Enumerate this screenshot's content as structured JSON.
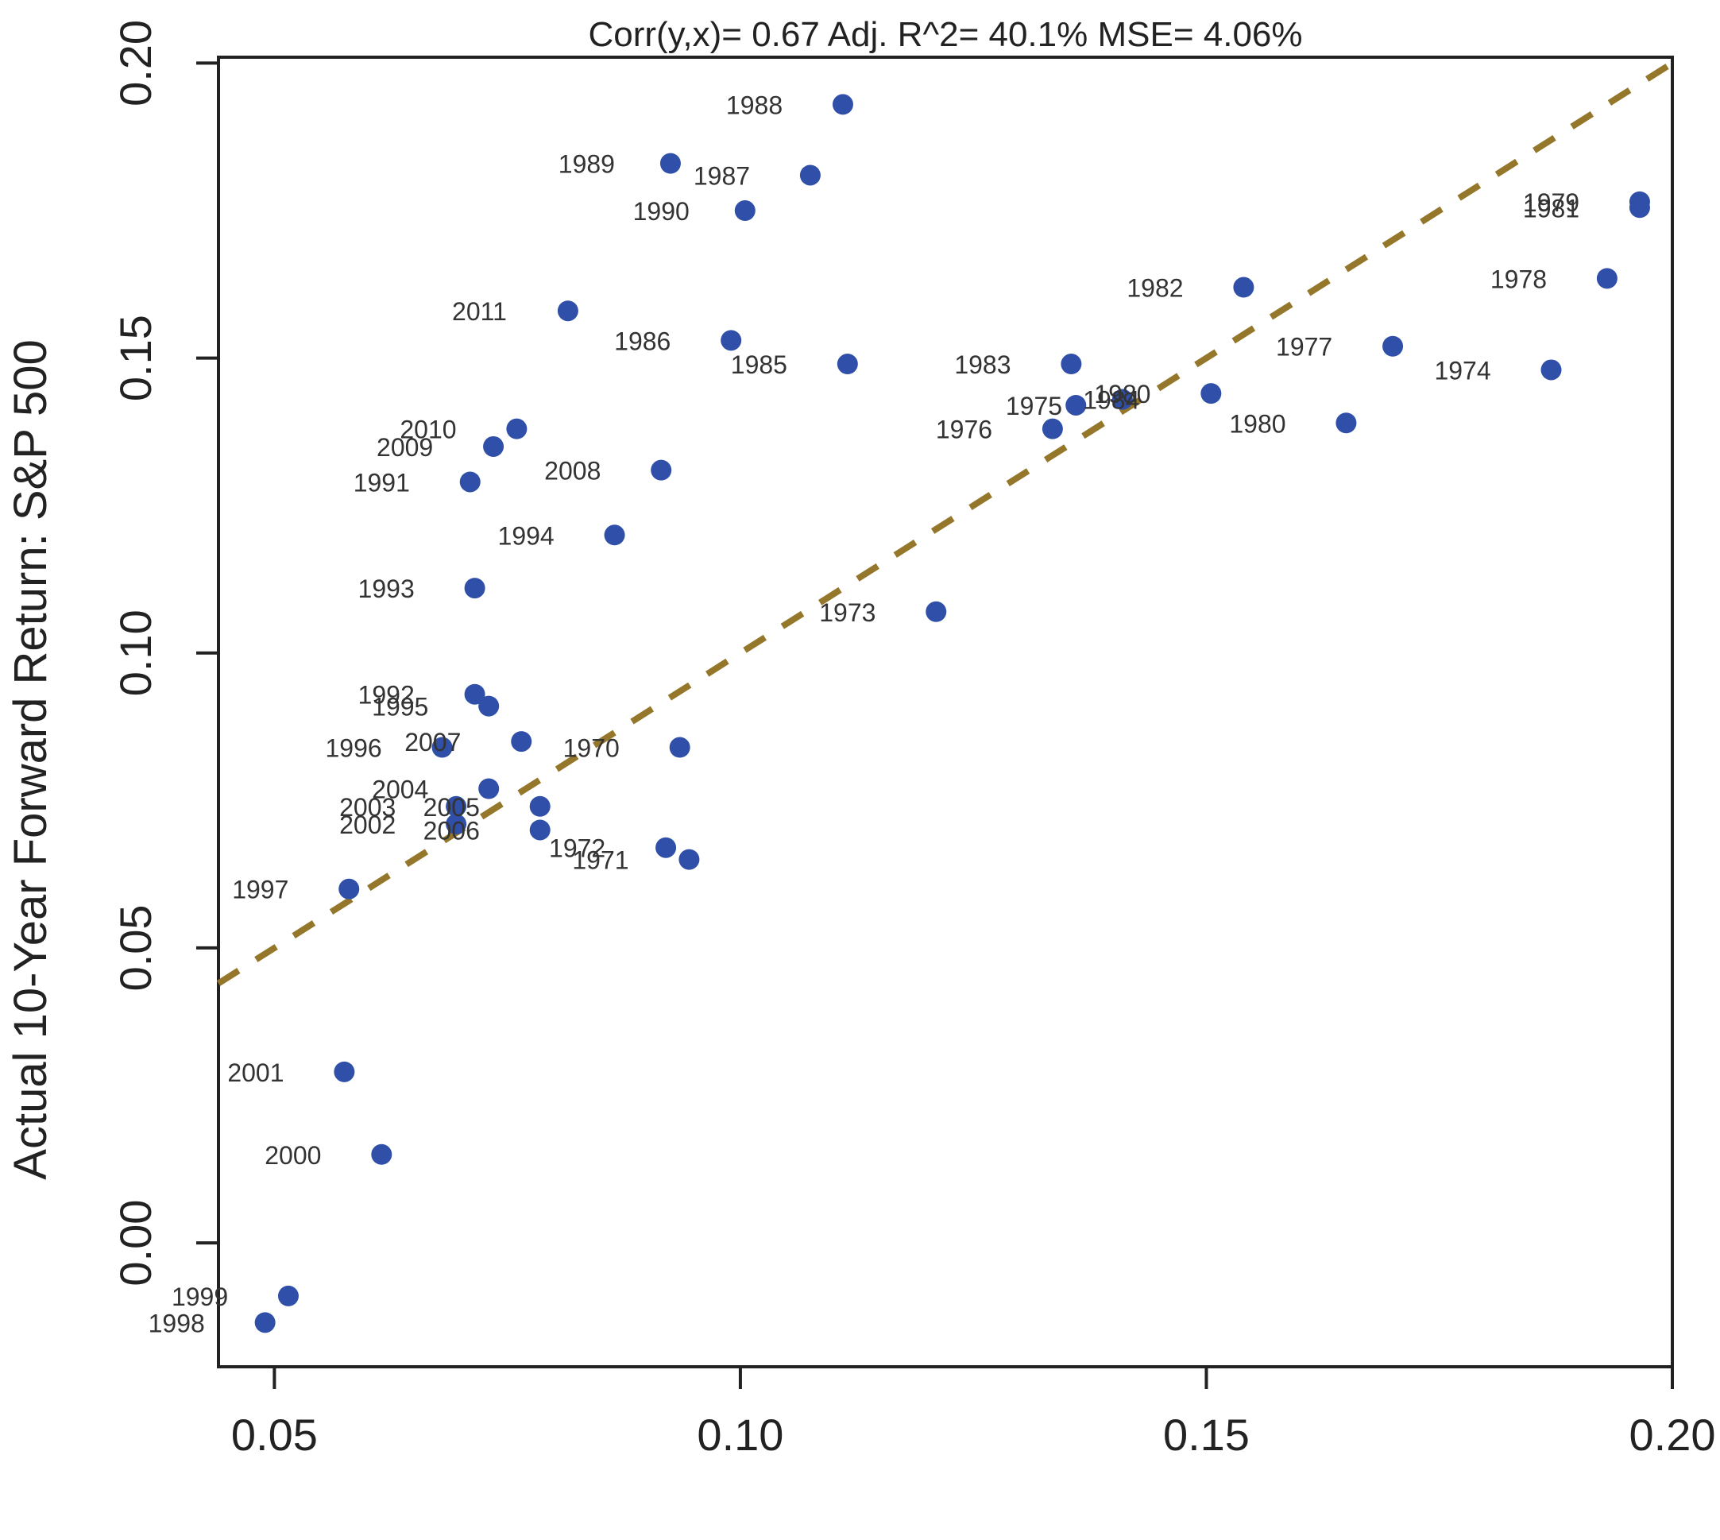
{
  "chart_data": {
    "type": "scatter",
    "title": "",
    "subtitle": "Corr(y,x)= 0.67   Adj. R^2= 40.1%   MSE= 4.06%",
    "xlabel": "",
    "ylabel": "Actual 10-Year Forward Return: S&P 500",
    "xlim": [
      0.044,
      0.2
    ],
    "ylim": [
      -0.021,
      0.201
    ],
    "xticks": [
      {
        "value": 0.05,
        "label": "0.05"
      },
      {
        "value": 0.1,
        "label": "0.10"
      },
      {
        "value": 0.15,
        "label": "0.15"
      },
      {
        "value": 0.2,
        "label": "0.20"
      }
    ],
    "yticks": [
      {
        "value": 0.0,
        "label": "0.00"
      },
      {
        "value": 0.05,
        "label": "0.05"
      },
      {
        "value": 0.1,
        "label": "0.10"
      },
      {
        "value": 0.15,
        "label": "0.15"
      },
      {
        "value": 0.2,
        "label": "0.20"
      }
    ],
    "grid": false,
    "point_color": "#2f4fa8",
    "fit_line_color": "#94772a",
    "fit_line": {
      "x": [
        0.044,
        0.2
      ],
      "y": [
        0.044,
        0.2
      ]
    },
    "points": [
      {
        "label": "1988",
        "x": 0.111,
        "y": 0.193
      },
      {
        "label": "1989",
        "x": 0.0925,
        "y": 0.183
      },
      {
        "label": "1987",
        "x": 0.1075,
        "y": 0.181
      },
      {
        "label": "1990",
        "x": 0.1005,
        "y": 0.175
      },
      {
        "label": "1979",
        "x": 0.1965,
        "y": 0.1765
      },
      {
        "label": "1981",
        "x": 0.1965,
        "y": 0.1755
      },
      {
        "label": "1982",
        "x": 0.154,
        "y": 0.162
      },
      {
        "label": "1978",
        "x": 0.193,
        "y": 0.1635
      },
      {
        "label": "2011",
        "x": 0.0815,
        "y": 0.158
      },
      {
        "label": "1986",
        "x": 0.099,
        "y": 0.153
      },
      {
        "label": "1977",
        "x": 0.17,
        "y": 0.152
      },
      {
        "label": "1985",
        "x": 0.1115,
        "y": 0.149
      },
      {
        "label": "1983",
        "x": 0.1355,
        "y": 0.149
      },
      {
        "label": "1974",
        "x": 0.187,
        "y": 0.148
      },
      {
        "label": "1984",
        "x": 0.141,
        "y": 0.143
      },
      {
        "label": "1975",
        "x": 0.136,
        "y": 0.142
      },
      {
        "label": "1980",
        "x": 0.1505,
        "y": 0.144
      },
      {
        "label": "1976",
        "x": 0.1335,
        "y": 0.138
      },
      {
        "label": "1980",
        "x": 0.165,
        "y": 0.139
      },
      {
        "label": "2010",
        "x": 0.076,
        "y": 0.138
      },
      {
        "label": "2009",
        "x": 0.0735,
        "y": 0.135
      },
      {
        "label": "1991",
        "x": 0.071,
        "y": 0.129
      },
      {
        "label": "2008",
        "x": 0.0915,
        "y": 0.131
      },
      {
        "label": "1994",
        "x": 0.0865,
        "y": 0.12
      },
      {
        "label": "1993",
        "x": 0.0715,
        "y": 0.111
      },
      {
        "label": "1973",
        "x": 0.121,
        "y": 0.107
      },
      {
        "label": "1992",
        "x": 0.0715,
        "y": 0.093
      },
      {
        "label": "1995",
        "x": 0.073,
        "y": 0.091
      },
      {
        "label": "1996",
        "x": 0.068,
        "y": 0.084
      },
      {
        "label": "2007",
        "x": 0.0765,
        "y": 0.085
      },
      {
        "label": "1970",
        "x": 0.0935,
        "y": 0.084
      },
      {
        "label": "2004",
        "x": 0.073,
        "y": 0.077
      },
      {
        "label": "2003",
        "x": 0.0695,
        "y": 0.074
      },
      {
        "label": "2005",
        "x": 0.0785,
        "y": 0.074
      },
      {
        "label": "2002",
        "x": 0.0695,
        "y": 0.071
      },
      {
        "label": "2006",
        "x": 0.0785,
        "y": 0.07
      },
      {
        "label": "1972",
        "x": 0.092,
        "y": 0.067
      },
      {
        "label": "1971",
        "x": 0.0945,
        "y": 0.065
      },
      {
        "label": "1997",
        "x": 0.058,
        "y": 0.06
      },
      {
        "label": "2001",
        "x": 0.0575,
        "y": 0.029
      },
      {
        "label": "2000",
        "x": 0.0615,
        "y": 0.015
      },
      {
        "label": "1999",
        "x": 0.0515,
        "y": -0.009
      },
      {
        "label": "1998",
        "x": 0.049,
        "y": -0.0135
      }
    ],
    "label_positions": [
      {
        "dx": -0.0095,
        "dy": 0.0
      },
      {
        "dx": -0.009,
        "dy": 0.0
      },
      {
        "dx": -0.0095,
        "dy": 0.0
      },
      {
        "dx": -0.009,
        "dy": 0.0
      },
      {
        "dx": -0.0095,
        "dy": 0.0
      },
      {
        "dx": -0.0095,
        "dy": 0.0
      },
      {
        "dx": -0.0095,
        "dy": 0.0
      },
      {
        "dx": -0.0095,
        "dy": 0.0
      },
      {
        "dx": -0.0095,
        "dy": 0.0
      },
      {
        "dx": -0.0095,
        "dy": 0.0
      },
      {
        "dx": -0.0095,
        "dy": 0.0
      },
      {
        "dx": -0.0095,
        "dy": 0.0
      },
      {
        "dx": -0.0095,
        "dy": 0.0
      },
      {
        "dx": -0.0095,
        "dy": 0.0
      },
      {
        "dx": -0.0012,
        "dy": 0.0
      },
      {
        "dx": -0.0045,
        "dy": 0.0
      },
      {
        "dx": -0.0095,
        "dy": 0.0
      },
      {
        "dx": -0.0095,
        "dy": 0.0
      },
      {
        "dx": -0.0095,
        "dy": 0.0
      },
      {
        "dx": -0.0095,
        "dy": 0.0
      },
      {
        "dx": -0.0095,
        "dy": 0.0
      },
      {
        "dx": -0.0095,
        "dy": 0.0
      },
      {
        "dx": -0.0095,
        "dy": 0.0
      },
      {
        "dx": -0.0095,
        "dy": 0.0
      },
      {
        "dx": -0.0095,
        "dy": 0.0
      },
      {
        "dx": -0.0095,
        "dy": 0.0
      },
      {
        "dx": -0.0095,
        "dy": 0.0
      },
      {
        "dx": -0.0095,
        "dy": 0.0
      },
      {
        "dx": -0.0095,
        "dy": 0.0
      },
      {
        "dx": -0.0095,
        "dy": 0.0
      },
      {
        "dx": -0.0095,
        "dy": 0.0
      },
      {
        "dx": -0.0095,
        "dy": 0.0
      },
      {
        "dx": -0.0095,
        "dy": 0.0
      },
      {
        "dx": -0.0095,
        "dy": 0.0
      },
      {
        "dx": -0.0095,
        "dy": 0.0
      },
      {
        "dx": -0.0095,
        "dy": 0.0
      },
      {
        "dx": -0.0095,
        "dy": 0.0
      },
      {
        "dx": -0.0095,
        "dy": 0.0
      },
      {
        "dx": -0.0095,
        "dy": 0.0
      },
      {
        "dx": -0.0095,
        "dy": 0.0
      },
      {
        "dx": -0.0095,
        "dy": 0.0
      },
      {
        "dx": -0.0095,
        "dy": 0.0
      },
      {
        "dx": -0.0095,
        "dy": 0.0
      }
    ]
  }
}
